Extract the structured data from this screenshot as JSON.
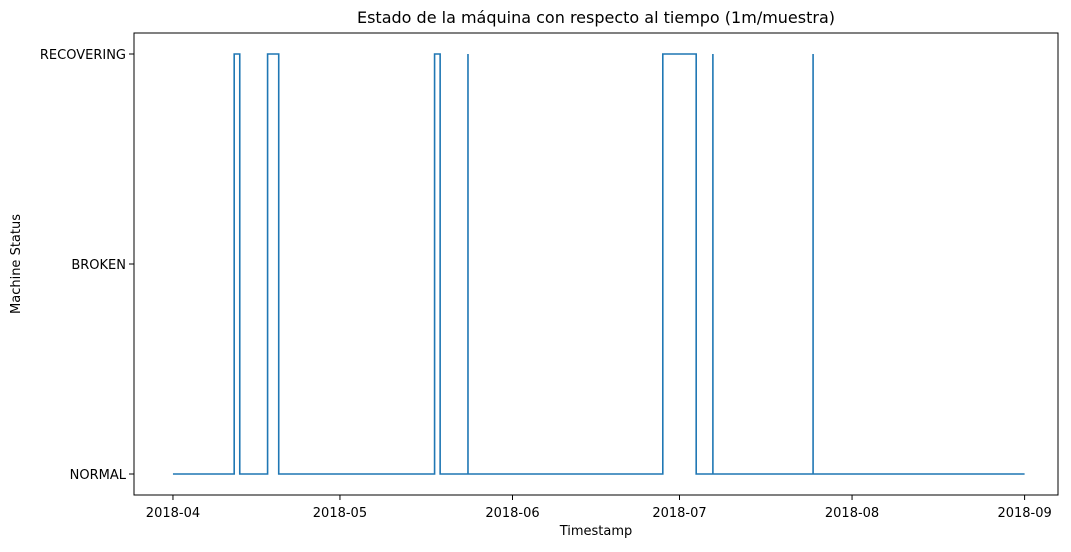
{
  "chart_data": {
    "type": "line",
    "title": "Estado de la máquina con respecto al tiempo (1m/muestra)",
    "xlabel": "Timestamp",
    "ylabel": "Machine Status",
    "x_ticks": [
      "2018-04",
      "2018-05",
      "2018-06",
      "2018-07",
      "2018-08",
      "2018-09"
    ],
    "y_categories": [
      "NORMAL",
      "BROKEN",
      "RECOVERING"
    ],
    "xlim": [
      "2018-03-25",
      "2018-09-07"
    ],
    "series": [
      {
        "color": "#1f77b4",
        "points": [
          [
            "2018-04-01",
            "NORMAL"
          ],
          [
            "2018-04-12",
            "NORMAL"
          ],
          [
            "2018-04-12",
            "RECOVERING"
          ],
          [
            "2018-04-13",
            "RECOVERING"
          ],
          [
            "2018-04-13",
            "NORMAL"
          ],
          [
            "2018-04-18",
            "NORMAL"
          ],
          [
            "2018-04-18",
            "RECOVERING"
          ],
          [
            "2018-04-20",
            "RECOVERING"
          ],
          [
            "2018-04-20",
            "NORMAL"
          ],
          [
            "2018-05-18",
            "NORMAL"
          ],
          [
            "2018-05-18",
            "RECOVERING"
          ],
          [
            "2018-05-19",
            "RECOVERING"
          ],
          [
            "2018-05-19",
            "NORMAL"
          ],
          [
            "2018-05-24",
            "NORMAL"
          ],
          [
            "2018-05-24",
            "RECOVERING"
          ],
          [
            "2018-05-24",
            "NORMAL"
          ],
          [
            "2018-06-28",
            "NORMAL"
          ],
          [
            "2018-06-28",
            "RECOVERING"
          ],
          [
            "2018-07-04",
            "RECOVERING"
          ],
          [
            "2018-07-04",
            "NORMAL"
          ],
          [
            "2018-07-07",
            "NORMAL"
          ],
          [
            "2018-07-07",
            "RECOVERING"
          ],
          [
            "2018-07-07",
            "NORMAL"
          ],
          [
            "2018-07-25",
            "NORMAL"
          ],
          [
            "2018-07-25",
            "RECOVERING"
          ],
          [
            "2018-07-25",
            "NORMAL"
          ],
          [
            "2018-09-01",
            "NORMAL"
          ]
        ]
      }
    ],
    "grid": false
  }
}
